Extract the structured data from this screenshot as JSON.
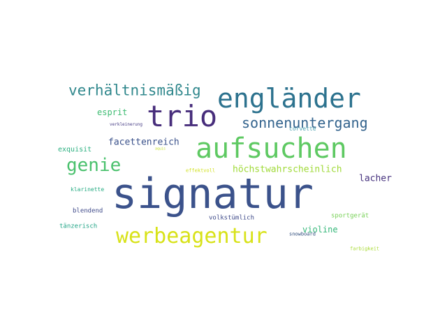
{
  "words": [
    {
      "text": "signatur",
      "color": "#3b528b"
    },
    {
      "text": "aufsuchen",
      "color": "#5ec962"
    },
    {
      "text": "trio",
      "color": "#472d7b"
    },
    {
      "text": "engländer",
      "color": "#2c728e"
    },
    {
      "text": "werbeagentur",
      "color": "#d8e219"
    },
    {
      "text": "verhältnismäßig",
      "color": "#31888d"
    },
    {
      "text": "genie",
      "color": "#4ac16d"
    },
    {
      "text": "sonnenuntergang",
      "color": "#33638d"
    },
    {
      "text": "facettenreich",
      "color": "#3b528b"
    },
    {
      "text": "höchstwahrscheinlich",
      "color": "#a0da39"
    },
    {
      "text": "lacher",
      "color": "#46327e"
    },
    {
      "text": "esprit",
      "color": "#3fbc73"
    },
    {
      "text": "violine",
      "color": "#35b779"
    },
    {
      "text": "exquisit",
      "color": "#29af7f"
    },
    {
      "text": "blendend",
      "color": "#3e4989"
    },
    {
      "text": "volkstümlich",
      "color": "#3e4a89"
    },
    {
      "text": "klarinette",
      "color": "#25ab82"
    },
    {
      "text": "sportgerät",
      "color": "#75d054"
    },
    {
      "text": "tänzerisch",
      "color": "#20a486"
    },
    {
      "text": "corvette",
      "color": "#4aa0b0"
    },
    {
      "text": "snowboard",
      "color": "#2c4a7a"
    },
    {
      "text": "farbigkeit",
      "color": "#a8db34"
    },
    {
      "text": "verkleinerung",
      "color": "#443a83"
    },
    {
      "text": "effektvoll",
      "color": "#d0e11c"
    },
    {
      "text": "aquis",
      "color": "#c2df23"
    }
  ]
}
